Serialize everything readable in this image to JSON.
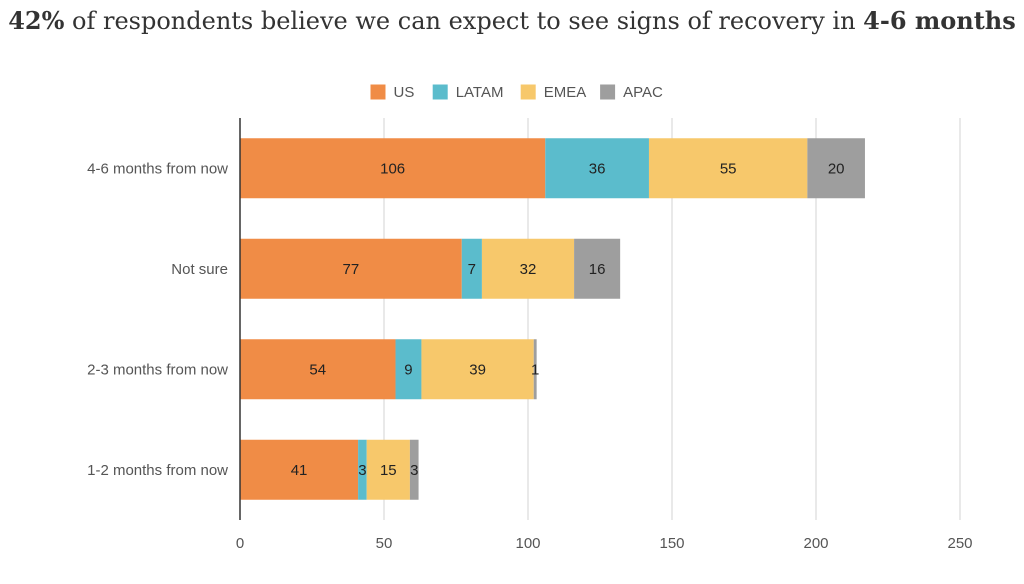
{
  "title": {
    "highlight_value": "42%",
    "middle_text": " of respondents believe we can expect to see signs of recovery in ",
    "highlight_period": "4-6 months"
  },
  "chart_data": {
    "type": "bar",
    "orientation": "horizontal",
    "stacked": true,
    "categories": [
      "4-6 months from now",
      "Not sure",
      "2-3 months from now",
      "1-2 months from now"
    ],
    "series": [
      {
        "name": "US",
        "color": "#f08c46",
        "values": [
          106,
          77,
          54,
          41
        ]
      },
      {
        "name": "LATAM",
        "color": "#5bbccc",
        "values": [
          36,
          7,
          9,
          3
        ]
      },
      {
        "name": "EMEA",
        "color": "#f7c86b",
        "values": [
          55,
          32,
          39,
          15
        ]
      },
      {
        "name": "APAC",
        "color": "#9e9e9e",
        "values": [
          20,
          16,
          1,
          3
        ]
      }
    ],
    "xlim": [
      0,
      250
    ],
    "xticks": [
      0,
      50,
      100,
      150,
      200,
      250
    ],
    "grid": true,
    "legend": "top-center",
    "data_labels": true
  }
}
